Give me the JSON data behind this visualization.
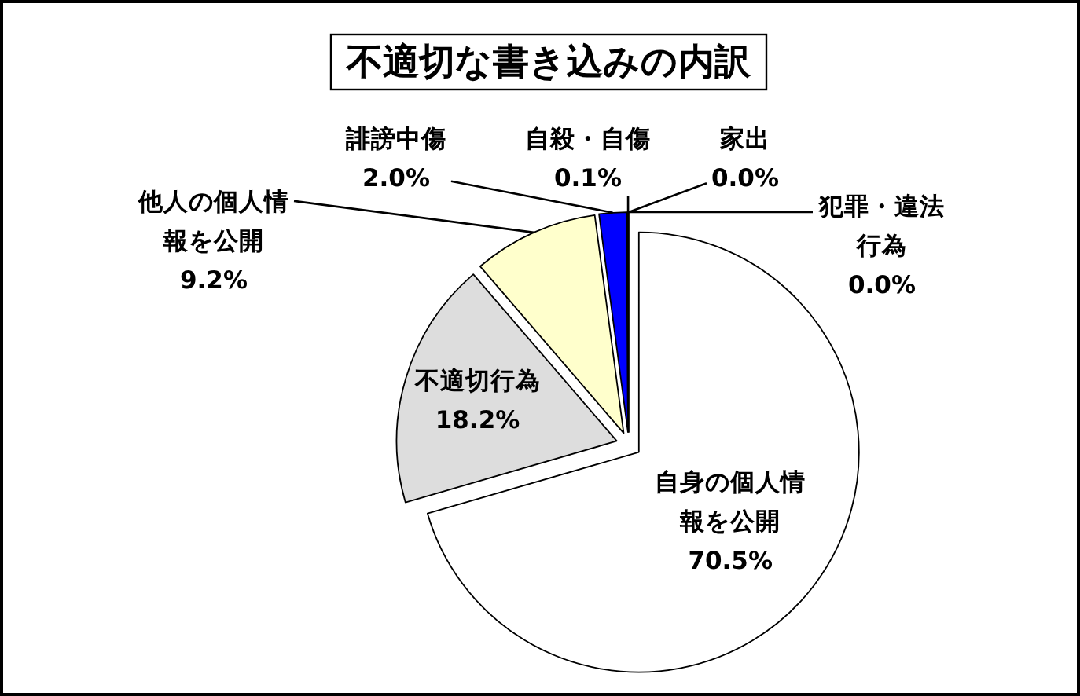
{
  "chart_data": {
    "type": "pie",
    "title": "不適切な書き込みの内訳",
    "categories": [
      "自身の個人情報を公開",
      "不適切行為",
      "他人の個人情報を公開",
      "誹謗中傷",
      "自殺・自傷",
      "家出",
      "犯罪・違法行為"
    ],
    "values": [
      70.5,
      18.2,
      9.2,
      2.0,
      0.1,
      0.0,
      0.0
    ],
    "colors": [
      "#ffffff",
      "#dddddd",
      "#ffffcc",
      "#0000ff",
      "#000080",
      "#000000",
      "#000000"
    ],
    "value_labels": [
      "70.5%",
      "18.2%",
      "9.2%",
      "2.0%",
      "0.1%",
      "0.0%",
      "0.0%"
    ]
  }
}
